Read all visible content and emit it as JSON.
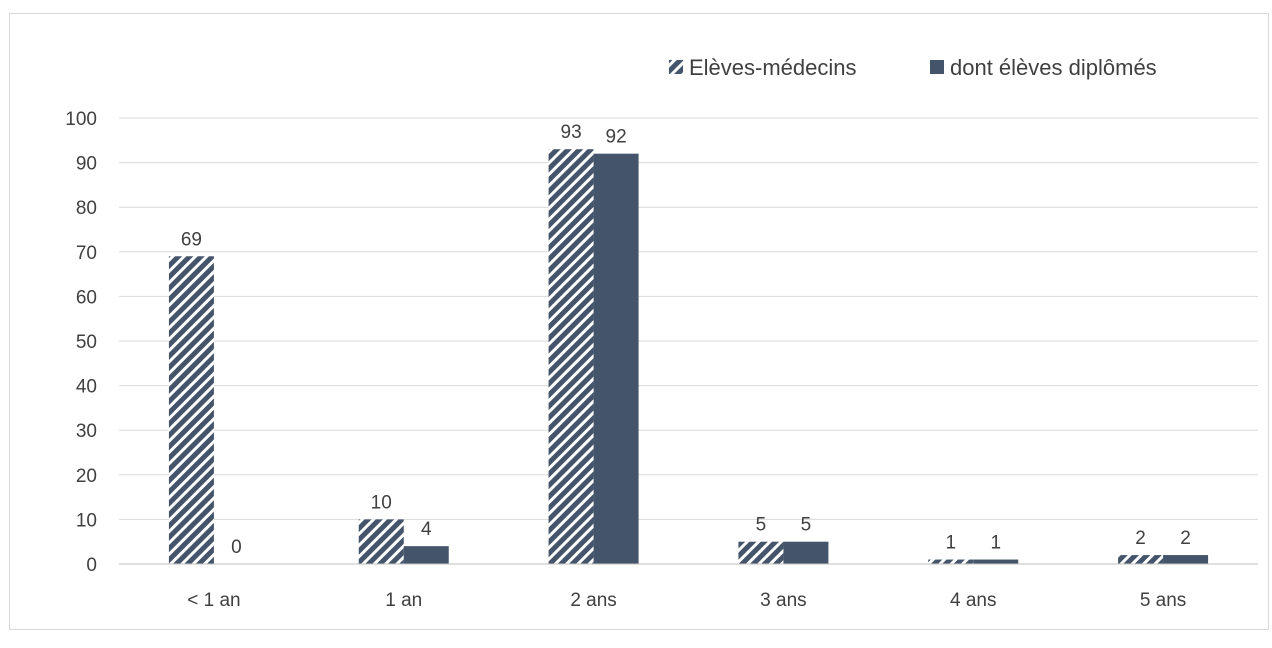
{
  "chart_data": {
    "type": "bar",
    "title": "",
    "xlabel": "",
    "ylabel": "",
    "categories": [
      "< 1 an",
      "1 an",
      "2 ans",
      "3 ans",
      "4 ans",
      "5 ans"
    ],
    "series": [
      {
        "name": "Elèves-médecins",
        "values": [
          69,
          10,
          93,
          5,
          1,
          2
        ],
        "color": "#44546a",
        "pattern": "diagonal-hatch"
      },
      {
        "name": "dont élèves diplômés",
        "values": [
          0,
          4,
          92,
          5,
          1,
          2
        ],
        "color": "#44546a",
        "pattern": "solid"
      }
    ],
    "ylim": [
      0,
      100
    ],
    "yticks": [
      0,
      10,
      20,
      30,
      40,
      50,
      60,
      70,
      80,
      90,
      100
    ],
    "grid": true,
    "legend_position": "top-right",
    "gridline_color": "#d9d9d9"
  }
}
